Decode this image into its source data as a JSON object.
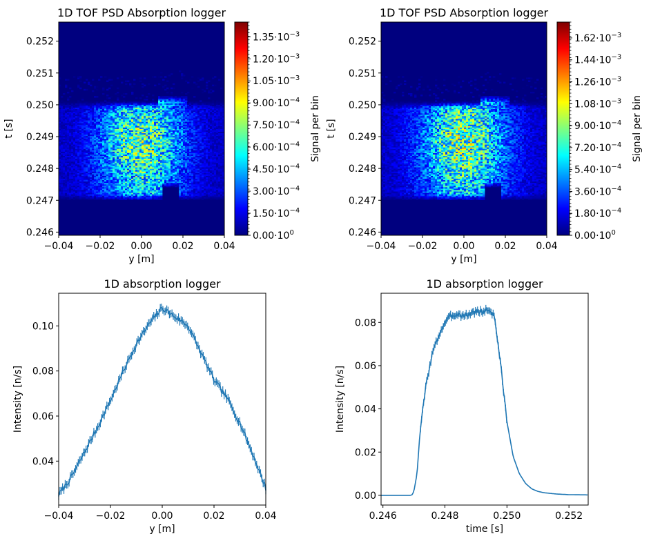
{
  "colors": {
    "line": "#1f77b4",
    "jet": [
      "#00007f",
      "#0000ff",
      "#007fff",
      "#00ffff",
      "#7fff7f",
      "#ffff00",
      "#ff7f00",
      "#ff0000",
      "#7f0000"
    ]
  },
  "chart_data": [
    {
      "id": "psd1",
      "type": "heatmap",
      "title": "1D TOF PSD Absorption logger",
      "xlabel": "y [m]",
      "ylabel": "t [s]",
      "xlim": [
        -0.04,
        0.04
      ],
      "ylim": [
        0.2459,
        0.2526
      ],
      "xticks": [
        -0.04,
        -0.02,
        0.0,
        0.02,
        0.04
      ],
      "xtick_labels": [
        "−0.04",
        "−0.02",
        "0.00",
        "0.02",
        "0.04"
      ],
      "yticks": [
        0.246,
        0.247,
        0.248,
        0.249,
        0.25,
        0.251,
        0.252
      ],
      "ytick_labels": [
        "0.246",
        "0.247",
        "0.248",
        "0.249",
        "0.250",
        "0.251",
        "0.252"
      ],
      "colorbar": {
        "label": "Signal per bin",
        "max": 0.00145,
        "ticks": [
          0,
          0.00015,
          0.0003,
          0.00045,
          0.0006,
          0.00075,
          0.0009,
          0.00105,
          0.0012,
          0.00135
        ],
        "tick_mantissas": [
          "0.00",
          "1.50",
          "3.00",
          "4.50",
          "6.00",
          "7.50",
          "9.00",
          "1.05",
          "1.20",
          "1.35"
        ],
        "tick_exponents": [
          "0",
          "−4",
          "−4",
          "−4",
          "−4",
          "−4",
          "−4",
          "−3",
          "−3",
          "−3"
        ]
      },
      "peak_value": 0.00082,
      "band": {
        "t_min": 0.247,
        "t_max": 0.2501,
        "t_max_right": 0.2503,
        "shelf_y_from": 0.01,
        "shelf_y_to": 0.018,
        "shelf_t_min": 0.2474
      },
      "seed": 11
    },
    {
      "id": "psd2",
      "type": "heatmap",
      "title": "1D TOF PSD Absorption logger",
      "xlabel": "y [m]",
      "ylabel": "t [s]",
      "xlim": [
        -0.04,
        0.04
      ],
      "ylim": [
        0.2459,
        0.2526
      ],
      "xticks": [
        -0.04,
        -0.02,
        0.0,
        0.02,
        0.04
      ],
      "xtick_labels": [
        "−0.04",
        "−0.02",
        "0.00",
        "0.02",
        "0.04"
      ],
      "yticks": [
        0.246,
        0.247,
        0.248,
        0.249,
        0.25,
        0.251,
        0.252
      ],
      "ytick_labels": [
        "0.246",
        "0.247",
        "0.248",
        "0.249",
        "0.250",
        "0.251",
        "0.252"
      ],
      "colorbar": {
        "label": "Signal per bin",
        "max": 0.00175,
        "ticks": [
          0,
          0.00018,
          0.00036,
          0.00054,
          0.00072,
          0.0009,
          0.00108,
          0.00126,
          0.00144,
          0.00162
        ],
        "tick_mantissas": [
          "0.00",
          "1.80",
          "3.60",
          "5.40",
          "7.20",
          "9.00",
          "1.08",
          "1.26",
          "1.44",
          "1.62"
        ],
        "tick_exponents": [
          "0",
          "−4",
          "−4",
          "−4",
          "−4",
          "−4",
          "−3",
          "−3",
          "−3",
          "−3"
        ]
      },
      "peak_value": 0.00105,
      "band": {
        "t_min": 0.247,
        "t_max": 0.2501,
        "t_max_right": 0.2503,
        "shelf_y_from": 0.01,
        "shelf_y_to": 0.018,
        "shelf_t_min": 0.2474
      },
      "seed": 29
    },
    {
      "id": "lineY",
      "type": "line",
      "title": "1D absorption logger",
      "xlabel": "y [m]",
      "ylabel": "Intensity [n/s]",
      "xlim": [
        -0.04,
        0.04
      ],
      "ylim": [
        0.0205,
        0.1145
      ],
      "xticks": [
        -0.04,
        -0.02,
        0.0,
        0.02,
        0.04
      ],
      "xtick_labels": [
        "−0.04",
        "−0.02",
        "0.00",
        "0.02",
        "0.04"
      ],
      "yticks": [
        0.04,
        0.06,
        0.08,
        0.1
      ],
      "ytick_labels": [
        "0.04",
        "0.06",
        "0.08",
        "0.10"
      ],
      "x": [
        -0.04,
        -0.035,
        -0.03,
        -0.025,
        -0.02,
        -0.015,
        -0.01,
        -0.005,
        0.0,
        0.005,
        0.01,
        0.015,
        0.02,
        0.025,
        0.03,
        0.035,
        0.04
      ],
      "y": [
        0.025,
        0.033,
        0.044,
        0.055,
        0.067,
        0.08,
        0.092,
        0.101,
        0.108,
        0.104,
        0.1,
        0.088,
        0.076,
        0.068,
        0.057,
        0.043,
        0.028
      ],
      "n_points": 160,
      "errorbar": 0.0017,
      "noise": 0.0012,
      "seed": 7
    },
    {
      "id": "lineT",
      "type": "line",
      "title": "1D absorption logger",
      "xlabel": "time [s]",
      "ylabel": "Intensity [n/s]",
      "xlim": [
        0.24594,
        0.25262
      ],
      "ylim": [
        -0.0045,
        0.0935
      ],
      "xticks": [
        0.246,
        0.248,
        0.25,
        0.252
      ],
      "xtick_labels": [
        "0.246",
        "0.248",
        "0.250",
        "0.252"
      ],
      "yticks": [
        0.0,
        0.02,
        0.04,
        0.06,
        0.08
      ],
      "ytick_labels": [
        "0.00",
        "0.02",
        "0.04",
        "0.06",
        "0.08"
      ],
      "x": [
        0.24594,
        0.2469,
        0.24695,
        0.247,
        0.2471,
        0.2472,
        0.2474,
        0.2476,
        0.2478,
        0.248,
        0.2482,
        0.2484,
        0.2486,
        0.2488,
        0.249,
        0.2492,
        0.2494,
        0.2496,
        0.2498,
        0.25,
        0.2502,
        0.2504,
        0.2506,
        0.2508,
        0.251,
        0.2512,
        0.2516,
        0.252,
        0.2526
      ],
      "y": [
        0.0,
        0.0,
        0.0004,
        0.002,
        0.01,
        0.03,
        0.052,
        0.066,
        0.074,
        0.08,
        0.083,
        0.084,
        0.083,
        0.084,
        0.085,
        0.085,
        0.086,
        0.083,
        0.06,
        0.034,
        0.018,
        0.01,
        0.0055,
        0.003,
        0.0018,
        0.0012,
        0.0006,
        0.0003,
        0.0002
      ],
      "n_points": 200,
      "errorbar": 0.0015,
      "noise": 0.0012,
      "noise_region": [
        0.2472,
        0.25
      ],
      "seed": 3
    }
  ]
}
